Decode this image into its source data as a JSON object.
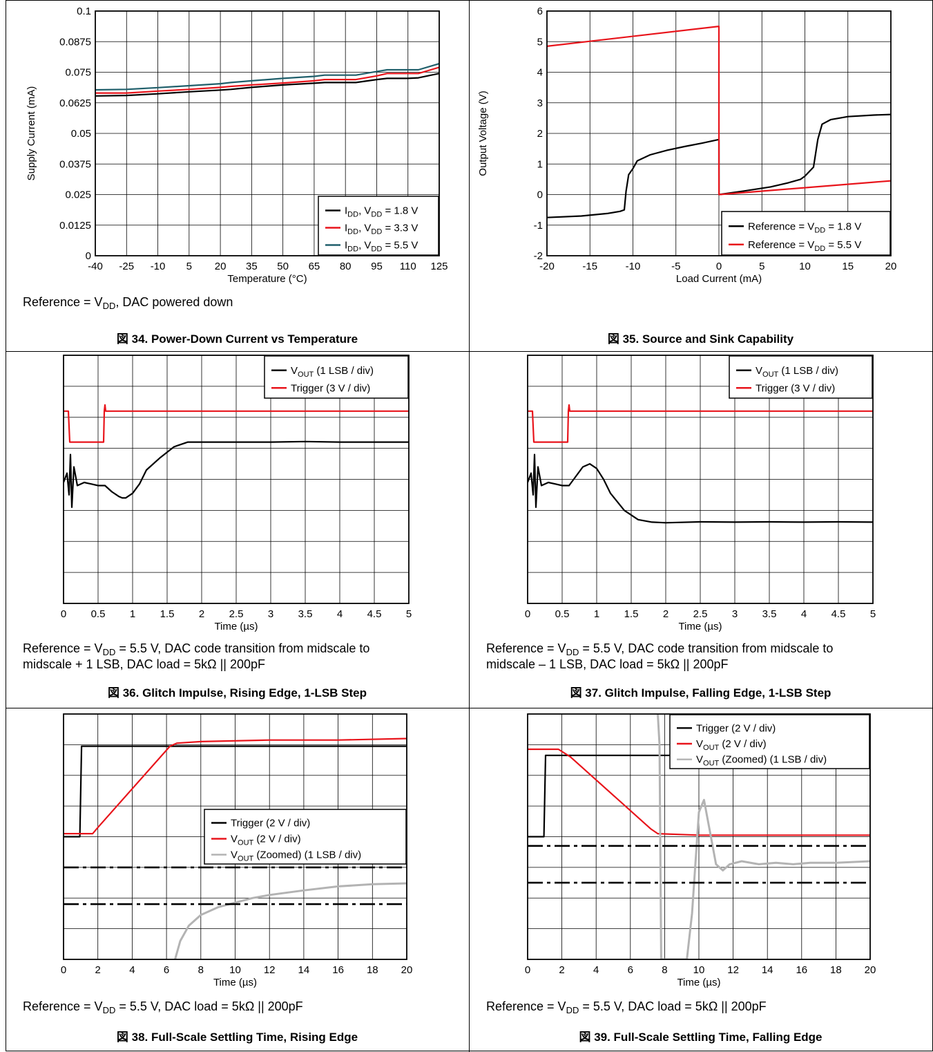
{
  "colors": {
    "black": "#000000",
    "red": "#e8141b",
    "teal": "#1f5f6b",
    "gray": "#b3b3b3",
    "grid": "#000000"
  },
  "figures": [
    {
      "caption": "図 34. Power-Down Current vs Temperature",
      "note": [
        "Reference = V_{DD}, DAC powered down"
      ],
      "chart_data": {
        "type": "line",
        "xlabel": "Temperature (°C)",
        "ylabel": "Supply Current (mA)",
        "xlim": [
          -40,
          125
        ],
        "ylim": [
          0,
          0.1
        ],
        "x_ticks": [
          "-40",
          "-25",
          "-10",
          "5",
          "20",
          "35",
          "50",
          "65",
          "80",
          "95",
          "110",
          "125"
        ],
        "y_ticks": [
          "0",
          "0.0125",
          "0.025",
          "0.0375",
          "0.05",
          "0.0625",
          "0.075",
          "0.0875",
          "0.1"
        ],
        "grid": true,
        "legend_position": "bottom-right",
        "x": [
          -40,
          -25,
          -10,
          5,
          20,
          25,
          35,
          50,
          65,
          70,
          80,
          85,
          95,
          100,
          110,
          115,
          125
        ],
        "series": [
          {
            "name": "I_{DD}, V_{DD} = 1.8 V",
            "color": "black",
            "values": [
              0.0653,
              0.0655,
              0.0662,
              0.067,
              0.0677,
              0.068,
              0.0688,
              0.0698,
              0.0705,
              0.0708,
              0.0708,
              0.0708,
              0.072,
              0.0725,
              0.0725,
              0.0727,
              0.0745
            ]
          },
          {
            "name": "I_{DD}, V_{DD} = 3.3 V",
            "color": "red",
            "values": [
              0.0665,
              0.0665,
              0.0673,
              0.068,
              0.0688,
              0.0692,
              0.0698,
              0.0706,
              0.0715,
              0.072,
              0.072,
              0.072,
              0.0735,
              0.0745,
              0.0745,
              0.0745,
              0.077
            ]
          },
          {
            "name": "I_{DD}, V_{DD} = 5.5 V",
            "color": "teal",
            "values": [
              0.0678,
              0.068,
              0.0687,
              0.0695,
              0.0703,
              0.0708,
              0.0715,
              0.0725,
              0.0733,
              0.0738,
              0.0738,
              0.0738,
              0.0753,
              0.076,
              0.076,
              0.076,
              0.0785
            ]
          }
        ]
      }
    },
    {
      "caption": "図 35. Source and Sink Capability",
      "note": [],
      "chart_data": {
        "type": "line",
        "xlabel": "Load Current (mA)",
        "ylabel": "Output Voltage (V)",
        "xlim": [
          -20,
          20
        ],
        "ylim": [
          -2,
          6
        ],
        "x_ticks": [
          "-20",
          "-15",
          "-10",
          "-5",
          "0",
          "5",
          "10",
          "15",
          "20"
        ],
        "y_ticks": [
          "-2",
          "-1",
          "0",
          "1",
          "2",
          "3",
          "4",
          "5",
          "6"
        ],
        "grid": true,
        "legend_position": "bottom-right",
        "series": [
          {
            "name": "Reference = V_{DD} = 1.8 V",
            "color": "black",
            "x": [
              -20,
              -16,
              -13,
              -11.5,
              -11,
              -10.8,
              -10.5,
              -10,
              -9.5,
              -8,
              -6,
              -4,
              -2,
              0,
              0,
              0.01,
              3,
              6,
              8,
              9.5,
              10,
              11,
              11.5,
              12,
              13,
              15,
              18,
              20
            ],
            "values": [
              -0.75,
              -0.7,
              -0.62,
              -0.55,
              -0.5,
              0.1,
              0.65,
              0.85,
              1.1,
              1.3,
              1.45,
              1.57,
              1.68,
              1.8,
              1.8,
              0.0,
              0.12,
              0.25,
              0.38,
              0.5,
              0.6,
              0.9,
              1.8,
              2.3,
              2.45,
              2.55,
              2.6,
              2.62
            ]
          },
          {
            "name": "Reference = V_{DD} = 5.5 V",
            "color": "red",
            "x": [
              -20,
              0,
              0,
              0.01,
              20
            ],
            "values": [
              4.85,
              5.5,
              5.5,
              0.0,
              0.45
            ]
          }
        ]
      }
    },
    {
      "caption": "図 36. Glitch Impulse, Rising Edge, 1-LSB Step",
      "note": [
        "Reference = V_{DD} = 5.5 V, DAC code transition from midscale to",
        "midscale + 1 LSB, DAC load = 5kΩ || 200pF"
      ],
      "chart_data": {
        "type": "line",
        "xlabel": "Time (µs)",
        "ylabel": "",
        "xlim": [
          0,
          5
        ],
        "ylim": [
          -4,
          4
        ],
        "x_ticks": [
          "0",
          "0.5",
          "1",
          "1.5",
          "2",
          "2.5",
          "3",
          "3.5",
          "4",
          "4.5",
          "5"
        ],
        "y_ticks": [],
        "grid": true,
        "legend_position": "top-right",
        "series": [
          {
            "name": "V_{OUT} (1 LSB / div)",
            "color": "black",
            "x": [
              0,
              0.05,
              0.08,
              0.1,
              0.12,
              0.15,
              0.2,
              0.3,
              0.4,
              0.5,
              0.6,
              0.7,
              0.8,
              0.85,
              0.9,
              1.0,
              1.1,
              1.2,
              1.4,
              1.6,
              1.8,
              2.0,
              2.5,
              3.0,
              3.5,
              4.0,
              4.5,
              5.0
            ],
            "values": [
              -0.1,
              0.2,
              -0.5,
              0.8,
              -0.9,
              0.4,
              -0.2,
              -0.1,
              -0.15,
              -0.2,
              -0.2,
              -0.4,
              -0.55,
              -0.6,
              -0.6,
              -0.45,
              -0.15,
              0.3,
              0.7,
              1.05,
              1.2,
              1.2,
              1.2,
              1.2,
              1.22,
              1.2,
              1.2,
              1.2
            ]
          },
          {
            "name": "Trigger (3 V / div)",
            "color": "red",
            "x": [
              0,
              0.07,
              0.09,
              0.58,
              0.59,
              0.6,
              0.61,
              5.0
            ],
            "values": [
              2.2,
              2.2,
              1.2,
              1.2,
              2.2,
              2.4,
              2.2,
              2.2
            ]
          }
        ]
      }
    },
    {
      "caption": "図 37. Glitch Impulse, Falling Edge, 1-LSB Step",
      "note": [
        "Reference = V_{DD} = 5.5 V, DAC code transition from midscale to",
        "midscale – 1 LSB, DAC load = 5kΩ || 200pF"
      ],
      "chart_data": {
        "type": "line",
        "xlabel": "Time (µs)",
        "ylabel": "",
        "xlim": [
          0,
          5
        ],
        "ylim": [
          -4,
          4
        ],
        "x_ticks": [
          "0",
          "0.5",
          "1",
          "1.5",
          "2",
          "2.5",
          "3",
          "3.5",
          "4",
          "4.5",
          "5"
        ],
        "y_ticks": [],
        "grid": true,
        "legend_position": "top-right",
        "series": [
          {
            "name": "V_{OUT} (1 LSB / div)",
            "color": "black",
            "x": [
              0,
              0.05,
              0.08,
              0.1,
              0.12,
              0.15,
              0.2,
              0.3,
              0.4,
              0.5,
              0.6,
              0.7,
              0.8,
              0.9,
              1.0,
              1.1,
              1.2,
              1.4,
              1.6,
              1.8,
              2.0,
              2.5,
              3.0,
              3.5,
              4.0,
              4.5,
              5.0
            ],
            "values": [
              -0.1,
              0.2,
              -0.5,
              0.8,
              -0.9,
              0.4,
              -0.2,
              -0.1,
              -0.15,
              -0.2,
              -0.2,
              0.1,
              0.4,
              0.5,
              0.35,
              0.0,
              -0.45,
              -1.0,
              -1.3,
              -1.38,
              -1.4,
              -1.37,
              -1.38,
              -1.37,
              -1.38,
              -1.37,
              -1.38
            ]
          },
          {
            "name": "Trigger (3 V / div)",
            "color": "red",
            "x": [
              0,
              0.07,
              0.09,
              0.58,
              0.59,
              0.6,
              0.61,
              5.0
            ],
            "values": [
              2.2,
              2.2,
              1.2,
              1.2,
              2.2,
              2.4,
              2.2,
              2.2
            ]
          }
        ]
      }
    },
    {
      "caption": "図 38. Full-Scale Settling Time, Rising Edge",
      "note": [
        "Reference = V_{DD} = 5.5 V, DAC load = 5kΩ || 200pF"
      ],
      "chart_data": {
        "type": "line",
        "xlabel": "Time (µs)",
        "ylabel": "",
        "xlim": [
          0,
          20
        ],
        "ylim": [
          -4,
          4
        ],
        "x_ticks": [
          "0",
          "2",
          "4",
          "6",
          "8",
          "10",
          "12",
          "14",
          "16",
          "18",
          "20"
        ],
        "y_ticks": [],
        "grid": true,
        "legend_position": "right",
        "series": [
          {
            "name": "Trigger (2 V / div)",
            "color": "black",
            "x": [
              0,
              0.95,
              1.05,
              20
            ],
            "values": [
              0.0,
              0.0,
              2.95,
              2.95
            ]
          },
          {
            "name": "V_{OUT} (2 V / div)",
            "color": "red",
            "x": [
              0,
              1.7,
              2.0,
              6.2,
              6.6,
              8,
              12,
              16,
              20
            ],
            "values": [
              0.1,
              0.1,
              0.3,
              2.95,
              3.05,
              3.1,
              3.15,
              3.15,
              3.2
            ]
          },
          {
            "name": "V_{OUT} (Zoomed) (1 LSB / div)",
            "color": "gray",
            "x": [
              6.5,
              6.8,
              7.3,
              8,
              9,
              10,
              11,
              12,
              14,
              16,
              18,
              20
            ],
            "values": [
              -4.0,
              -3.4,
              -2.9,
              -2.55,
              -2.3,
              -2.15,
              -2.0,
              -1.9,
              -1.75,
              -1.62,
              -1.55,
              -1.52
            ]
          },
          {
            "name": "",
            "color": "black",
            "style": "dashdot",
            "x": [
              0,
              20
            ],
            "values": [
              -1.0,
              -1.0
            ]
          },
          {
            "name": "",
            "color": "black",
            "style": "dashdot",
            "x": [
              0,
              20
            ],
            "values": [
              -2.2,
              -2.2
            ]
          }
        ]
      }
    },
    {
      "caption": "図 39. Full-Scale Settling Time, Falling Edge",
      "note": [
        "Reference = V_{DD} = 5.5 V, DAC load = 5kΩ || 200pF"
      ],
      "chart_data": {
        "type": "line",
        "xlabel": "Time (µs)",
        "ylabel": "",
        "xlim": [
          0,
          20
        ],
        "ylim": [
          -4,
          4
        ],
        "x_ticks": [
          "0",
          "2",
          "4",
          "6",
          "8",
          "10",
          "12",
          "14",
          "16",
          "18",
          "20"
        ],
        "y_ticks": [],
        "grid": true,
        "legend_position": "top-right",
        "series": [
          {
            "name": "Trigger (2 V / div)",
            "color": "black",
            "x": [
              0,
              0.95,
              1.05,
              20
            ],
            "values": [
              0.0,
              0.0,
              2.65,
              2.65
            ]
          },
          {
            "name": "V_{OUT} (2 V / div)",
            "color": "red",
            "x": [
              0,
              1.8,
              2.5,
              7.2,
              7.6,
              10,
              14,
              20
            ],
            "values": [
              2.85,
              2.85,
              2.6,
              0.25,
              0.1,
              0.05,
              0.05,
              0.05
            ]
          },
          {
            "name": "V_{OUT} (Zoomed) (1 LSB / div)",
            "color": "gray",
            "x": [
              7.5,
              7.7,
              7.8,
              8.0,
              9.0,
              9.3,
              9.6,
              10.0,
              10.3,
              10.7,
              11.0,
              11.4,
              11.8,
              12.5,
              13.5,
              14.5,
              15.5,
              16.5,
              18,
              20
            ],
            "values": [
              5.0,
              3.0,
              -4.0,
              -4.0,
              -4.0,
              -4.0,
              -2.5,
              0.8,
              1.2,
              0.0,
              -0.9,
              -1.1,
              -0.9,
              -0.8,
              -0.9,
              -0.85,
              -0.9,
              -0.85,
              -0.85,
              -0.8
            ]
          },
          {
            "name": "",
            "color": "black",
            "style": "dashdot",
            "x": [
              0,
              20
            ],
            "values": [
              -0.3,
              -0.3
            ]
          },
          {
            "name": "",
            "color": "black",
            "style": "dashdot",
            "x": [
              0,
              20
            ],
            "values": [
              -1.5,
              -1.5
            ]
          }
        ]
      }
    }
  ]
}
